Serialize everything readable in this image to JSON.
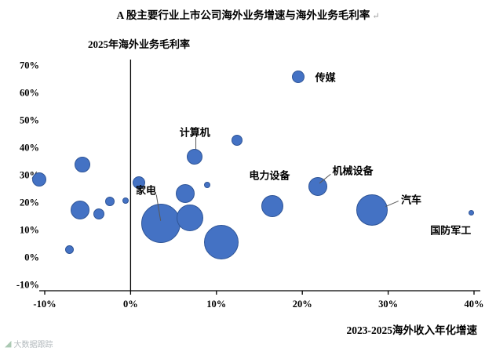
{
  "title": {
    "text": "A 股主要行业上市公司海外业务增速与海外业务毛利率",
    "return_mark": "↵"
  },
  "watermark": {
    "icon": "◢",
    "text": "大数据跟踪"
  },
  "chart_data": {
    "type": "scatter",
    "title": "A 股主要行业上市公司海外业务增速与海外业务毛利率",
    "y_axis_title": "2025年海外业务毛利率",
    "x_axis_title": "2023-2025海外收入年化增速",
    "xlim": [
      -10,
      40
    ],
    "ylim": [
      -10,
      70
    ],
    "grid": false,
    "bubble_color": "#4472C4",
    "bubble_border_color": "#2F5597",
    "x_ticks": [
      {
        "v": -10,
        "label": "-10%"
      },
      {
        "v": 0,
        "label": "0%"
      },
      {
        "v": 10,
        "label": "10%"
      },
      {
        "v": 20,
        "label": "20%"
      },
      {
        "v": 30,
        "label": "30%"
      },
      {
        "v": 40,
        "label": "40%"
      }
    ],
    "y_ticks": [
      {
        "v": 70,
        "label": "70%"
      },
      {
        "v": 60,
        "label": "60%"
      },
      {
        "v": 50,
        "label": "50%"
      },
      {
        "v": 40,
        "label": "40%"
      },
      {
        "v": 30,
        "label": "30%"
      },
      {
        "v": 20,
        "label": "20%"
      },
      {
        "v": 10,
        "label": "10%"
      },
      {
        "v": 0,
        "label": "0%"
      },
      {
        "v": -10,
        "label": "-10%"
      }
    ],
    "bubbles": [
      {
        "name": "传媒",
        "x": 19.5,
        "y": 66.0,
        "r": 8
      },
      {
        "name": "",
        "x": 12.4,
        "y": 43.0,
        "r": 7
      },
      {
        "name": "计算机",
        "x": 7.5,
        "y": 37.0,
        "r": 10
      },
      {
        "name": "",
        "x": 8.9,
        "y": 26.5,
        "r": 4
      },
      {
        "name": "",
        "x": -5.6,
        "y": 34.0,
        "r": 10
      },
      {
        "name": "",
        "x": -10.6,
        "y": 28.5,
        "r": 9
      },
      {
        "name": "家电",
        "x": 3.5,
        "y": 12.5,
        "r": 25
      },
      {
        "name": "",
        "x": 6.9,
        "y": 14.6,
        "r": 17
      },
      {
        "name": "",
        "x": 10.6,
        "y": 5.8,
        "r": 22
      },
      {
        "name": "",
        "x": 6.4,
        "y": 23.4,
        "r": 12
      },
      {
        "name": "",
        "x": 1.0,
        "y": 27.5,
        "r": 8
      },
      {
        "name": "",
        "x": -5.9,
        "y": 17.4,
        "r": 12
      },
      {
        "name": "",
        "x": -3.7,
        "y": 16.0,
        "r": 7
      },
      {
        "name": "",
        "x": -2.4,
        "y": 20.6,
        "r": 6
      },
      {
        "name": "",
        "x": -0.6,
        "y": 21.0,
        "r": 4
      },
      {
        "name": "",
        "x": -7.1,
        "y": 3.0,
        "r": 5.5
      },
      {
        "name": "电力设备",
        "x": 16.5,
        "y": 19.0,
        "r": 14
      },
      {
        "name": "机械设备",
        "x": 21.8,
        "y": 26.0,
        "r": 12
      },
      {
        "name": "汽车",
        "x": 28.1,
        "y": 17.4,
        "r": 20
      },
      {
        "name": "国防军工",
        "x": 39.7,
        "y": 16.3,
        "r": 3.5
      }
    ],
    "annotations": [
      {
        "label": "传媒",
        "x": 21.5,
        "y": 66.0,
        "line": null
      },
      {
        "label": "计算机",
        "x": 5.7,
        "y": 46.0,
        "line": [
          7.6,
          44.0,
          7.6,
          39.5
        ]
      },
      {
        "label": "家电",
        "x": 0.6,
        "y": 25.0,
        "line": [
          3.0,
          23.0,
          3.5,
          13.5
        ]
      },
      {
        "label": "电力设备",
        "x": 13.8,
        "y": 30.3,
        "line": null
      },
      {
        "label": "机械设备",
        "x": 23.5,
        "y": 32.0,
        "line": [
          23.3,
          30.5,
          22.0,
          27.2
        ]
      },
      {
        "label": "汽车",
        "x": 31.5,
        "y": 21.4,
        "line": [
          31.2,
          20.7,
          29.7,
          18.7
        ]
      },
      {
        "label": "国防军工",
        "x": 34.9,
        "y": 10.3,
        "line": null
      }
    ]
  }
}
